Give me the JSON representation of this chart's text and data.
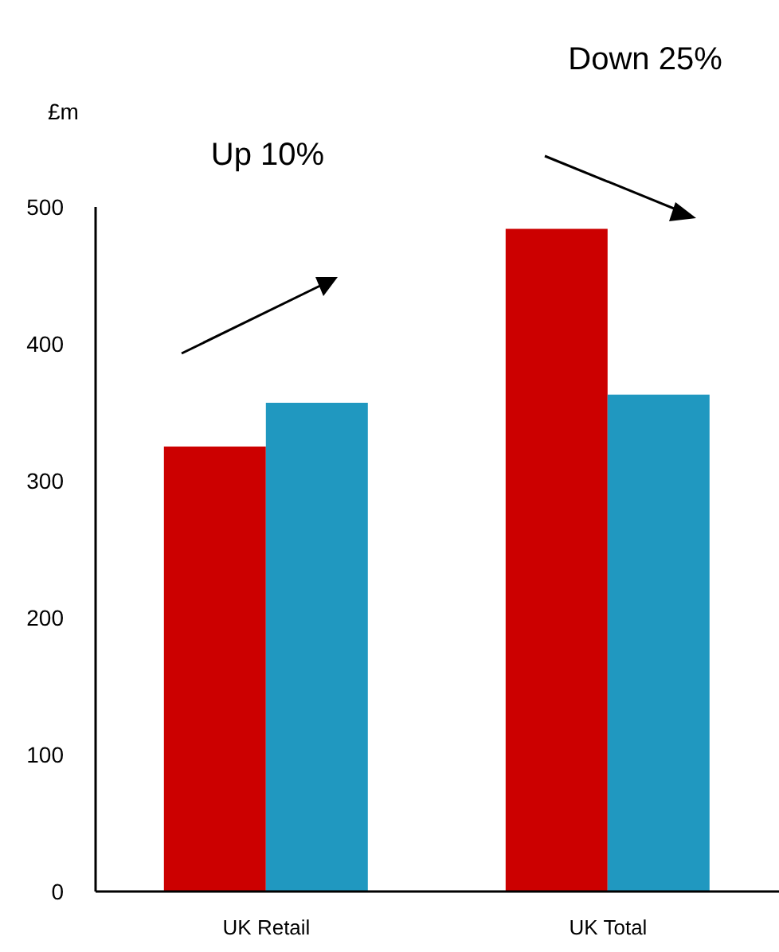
{
  "chart_data": {
    "type": "bar",
    "ylabel": "£m",
    "categories": [
      "UK Retail",
      "UK Total"
    ],
    "series": [
      {
        "color": "#cc0000",
        "values": [
          325,
          484
        ]
      },
      {
        "color": "#2098c0",
        "values": [
          357,
          363
        ]
      }
    ],
    "ylim": [
      0,
      500
    ],
    "yticks": [
      0,
      100,
      200,
      300,
      400,
      500
    ],
    "grid": false,
    "legend": false,
    "annotations": [
      "Up 10%",
      "Down 25%"
    ]
  }
}
